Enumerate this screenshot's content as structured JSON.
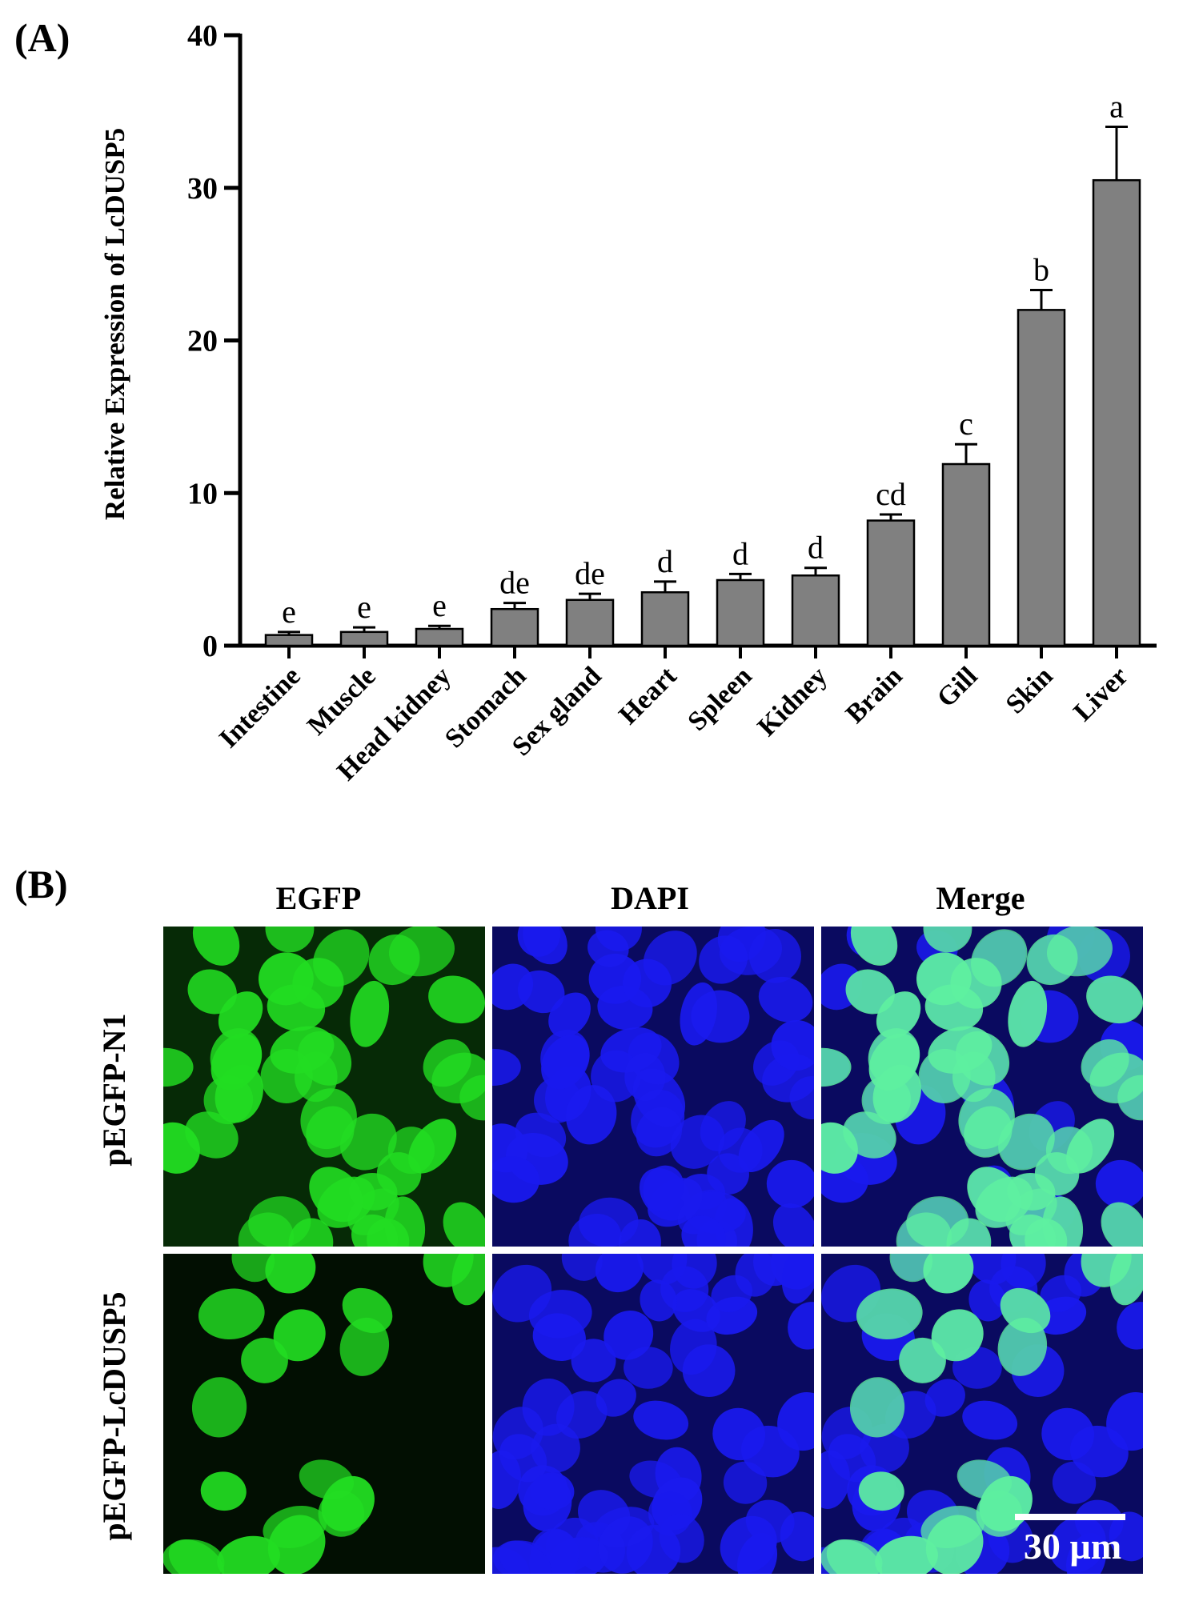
{
  "panel_a_label": "(A)",
  "panel_b_label": "(B)",
  "chart_data": {
    "type": "bar",
    "title": "",
    "xlabel": "",
    "ylabel": "Relative Expression of LcDUSP5",
    "ylim": [
      0,
      40
    ],
    "yticks": [
      0,
      10,
      20,
      30,
      40
    ],
    "categories": [
      "Intestine",
      "Muscle",
      "Head kidney",
      "Stomach",
      "Sex gland",
      "Heart",
      "Spleen",
      "Kidney",
      "Brain",
      "Gill",
      "Skin",
      "Liver"
    ],
    "values": [
      0.7,
      0.9,
      1.1,
      2.4,
      3.0,
      3.5,
      4.3,
      4.6,
      8.2,
      11.9,
      22.0,
      30.5
    ],
    "errors": [
      0.2,
      0.3,
      0.2,
      0.4,
      0.4,
      0.7,
      0.4,
      0.5,
      0.4,
      1.3,
      1.3,
      3.5
    ],
    "significance": [
      "e",
      "e",
      "e",
      "de",
      "de",
      "d",
      "d",
      "d",
      "cd",
      "c",
      "b",
      "a"
    ],
    "bar_color": "#808080",
    "grid": false,
    "legend": "none"
  },
  "panel_b": {
    "columns": [
      "EGFP",
      "DAPI",
      "Merge"
    ],
    "rows": [
      "pEGFP-N1",
      "pEGFP-LcDUSP5"
    ],
    "scale_bar_label": "30 µm",
    "colors": {
      "egfp": "#22dd22",
      "dapi": "#1a1aee",
      "background": "#000000"
    }
  }
}
